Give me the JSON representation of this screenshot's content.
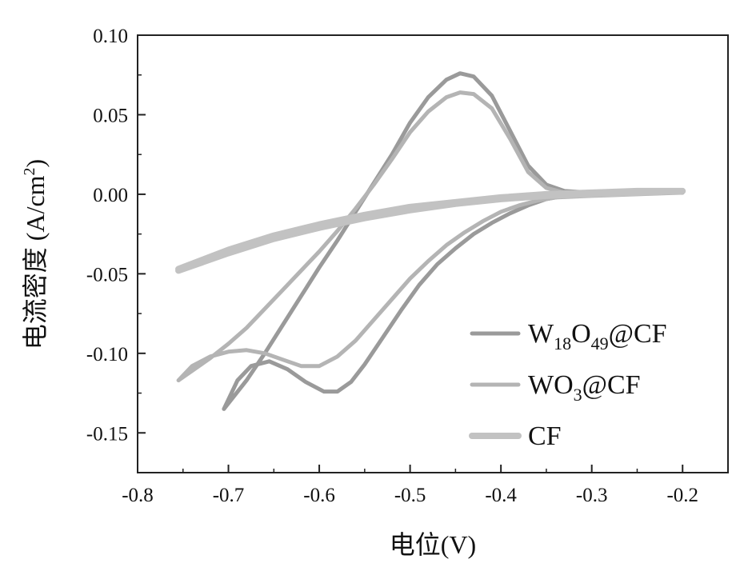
{
  "chart_data": {
    "type": "line",
    "title": "",
    "xlabel": "电位(V)",
    "ylabel": "电流密度 (A/cm²)",
    "ylabel_parts": {
      "main": "电流密度 (A/cm",
      "sup": "2",
      "end": ")"
    },
    "xlim": [
      -0.8,
      -0.15
    ],
    "ylim": [
      -0.175,
      0.1
    ],
    "x_ticks": [
      -0.8,
      -0.7,
      -0.6,
      -0.5,
      -0.4,
      -0.3,
      -0.2
    ],
    "x_tick_labels": [
      "-0.8",
      "-0.7",
      "-0.6",
      "-0.5",
      "-0.4",
      "-0.3",
      "-0.2"
    ],
    "y_ticks": [
      0.1,
      0.05,
      0.0,
      -0.05,
      -0.1,
      -0.15
    ],
    "y_tick_labels": [
      "0.10",
      "0.05",
      "0.00",
      "-0.05",
      "-0.10",
      "-0.15"
    ],
    "legend": {
      "placement": "bottom-right",
      "entries": [
        {
          "label": "W18O49@CF",
          "parts": [
            {
              "t": "W"
            },
            {
              "t": "18",
              "sub": true
            },
            {
              "t": "O"
            },
            {
              "t": "49",
              "sub": true
            },
            {
              "t": "@CF"
            }
          ]
        },
        {
          "label": "WO3@CF",
          "parts": [
            {
              "t": "WO"
            },
            {
              "t": "3",
              "sub": true
            },
            {
              "t": "@CF"
            }
          ]
        },
        {
          "label": "CF",
          "parts": [
            {
              "t": "CF"
            }
          ]
        }
      ]
    },
    "series": [
      {
        "name": "W18O49@CF",
        "color": "#9a9a9a",
        "points": [
          [
            -0.705,
            -0.135
          ],
          [
            -0.69,
            -0.117
          ],
          [
            -0.675,
            -0.108
          ],
          [
            -0.655,
            -0.105
          ],
          [
            -0.635,
            -0.11
          ],
          [
            -0.615,
            -0.118
          ],
          [
            -0.595,
            -0.124
          ],
          [
            -0.58,
            -0.124
          ],
          [
            -0.565,
            -0.118
          ],
          [
            -0.55,
            -0.107
          ],
          [
            -0.53,
            -0.09
          ],
          [
            -0.51,
            -0.073
          ],
          [
            -0.49,
            -0.057
          ],
          [
            -0.47,
            -0.044
          ],
          [
            -0.45,
            -0.034
          ],
          [
            -0.43,
            -0.025
          ],
          [
            -0.41,
            -0.018
          ],
          [
            -0.39,
            -0.012
          ],
          [
            -0.37,
            -0.007
          ],
          [
            -0.35,
            -0.003
          ],
          [
            -0.33,
            -0.001
          ],
          [
            -0.3,
            0.0
          ],
          [
            -0.25,
            0.001
          ],
          [
            -0.2,
            0.001
          ],
          [
            -0.25,
            0.001
          ],
          [
            -0.3,
            0.001
          ],
          [
            -0.33,
            0.002
          ],
          [
            -0.35,
            0.006
          ],
          [
            -0.37,
            0.018
          ],
          [
            -0.39,
            0.04
          ],
          [
            -0.41,
            0.062
          ],
          [
            -0.43,
            0.074
          ],
          [
            -0.445,
            0.076
          ],
          [
            -0.46,
            0.072
          ],
          [
            -0.48,
            0.061
          ],
          [
            -0.5,
            0.045
          ],
          [
            -0.52,
            0.025
          ],
          [
            -0.54,
            0.007
          ],
          [
            -0.56,
            -0.011
          ],
          [
            -0.58,
            -0.029
          ],
          [
            -0.6,
            -0.046
          ],
          [
            -0.62,
            -0.064
          ],
          [
            -0.64,
            -0.082
          ],
          [
            -0.66,
            -0.1
          ],
          [
            -0.68,
            -0.117
          ],
          [
            -0.705,
            -0.135
          ]
        ]
      },
      {
        "name": "WO3@CF",
        "color": "#b4b4b4",
        "points": [
          [
            -0.755,
            -0.117
          ],
          [
            -0.74,
            -0.108
          ],
          [
            -0.72,
            -0.102
          ],
          [
            -0.7,
            -0.099
          ],
          [
            -0.68,
            -0.098
          ],
          [
            -0.66,
            -0.1
          ],
          [
            -0.64,
            -0.104
          ],
          [
            -0.62,
            -0.108
          ],
          [
            -0.6,
            -0.108
          ],
          [
            -0.58,
            -0.102
          ],
          [
            -0.56,
            -0.092
          ],
          [
            -0.54,
            -0.079
          ],
          [
            -0.52,
            -0.066
          ],
          [
            -0.5,
            -0.053
          ],
          [
            -0.48,
            -0.042
          ],
          [
            -0.46,
            -0.032
          ],
          [
            -0.44,
            -0.024
          ],
          [
            -0.42,
            -0.017
          ],
          [
            -0.4,
            -0.011
          ],
          [
            -0.38,
            -0.007
          ],
          [
            -0.36,
            -0.004
          ],
          [
            -0.34,
            -0.002
          ],
          [
            -0.3,
            -0.001
          ],
          [
            -0.25,
            0.0
          ],
          [
            -0.2,
            0.001
          ],
          [
            -0.25,
            0.001
          ],
          [
            -0.3,
            0.001
          ],
          [
            -0.33,
            0.001
          ],
          [
            -0.35,
            0.004
          ],
          [
            -0.37,
            0.014
          ],
          [
            -0.39,
            0.035
          ],
          [
            -0.41,
            0.054
          ],
          [
            -0.43,
            0.063
          ],
          [
            -0.445,
            0.064
          ],
          [
            -0.46,
            0.061
          ],
          [
            -0.48,
            0.052
          ],
          [
            -0.5,
            0.039
          ],
          [
            -0.52,
            0.022
          ],
          [
            -0.54,
            0.006
          ],
          [
            -0.56,
            -0.009
          ],
          [
            -0.58,
            -0.023
          ],
          [
            -0.6,
            -0.036
          ],
          [
            -0.62,
            -0.048
          ],
          [
            -0.64,
            -0.06
          ],
          [
            -0.66,
            -0.072
          ],
          [
            -0.68,
            -0.084
          ],
          [
            -0.7,
            -0.094
          ],
          [
            -0.72,
            -0.103
          ],
          [
            -0.74,
            -0.111
          ],
          [
            -0.755,
            -0.117
          ]
        ]
      },
      {
        "name": "CF",
        "color": "#c2c2c2",
        "points": [
          [
            -0.755,
            -0.048
          ],
          [
            -0.7,
            -0.037
          ],
          [
            -0.65,
            -0.028
          ],
          [
            -0.6,
            -0.021
          ],
          [
            -0.55,
            -0.015
          ],
          [
            -0.5,
            -0.01
          ],
          [
            -0.45,
            -0.006
          ],
          [
            -0.4,
            -0.003
          ],
          [
            -0.35,
            -0.001
          ],
          [
            -0.3,
            0.0
          ],
          [
            -0.25,
            0.001
          ],
          [
            -0.2,
            0.002
          ],
          [
            -0.25,
            0.002
          ],
          [
            -0.3,
            0.001
          ],
          [
            -0.35,
            0.0
          ],
          [
            -0.4,
            -0.002
          ],
          [
            -0.45,
            -0.005
          ],
          [
            -0.5,
            -0.008
          ],
          [
            -0.55,
            -0.013
          ],
          [
            -0.6,
            -0.019
          ],
          [
            -0.65,
            -0.026
          ],
          [
            -0.7,
            -0.035
          ],
          [
            -0.755,
            -0.047
          ]
        ]
      }
    ]
  }
}
